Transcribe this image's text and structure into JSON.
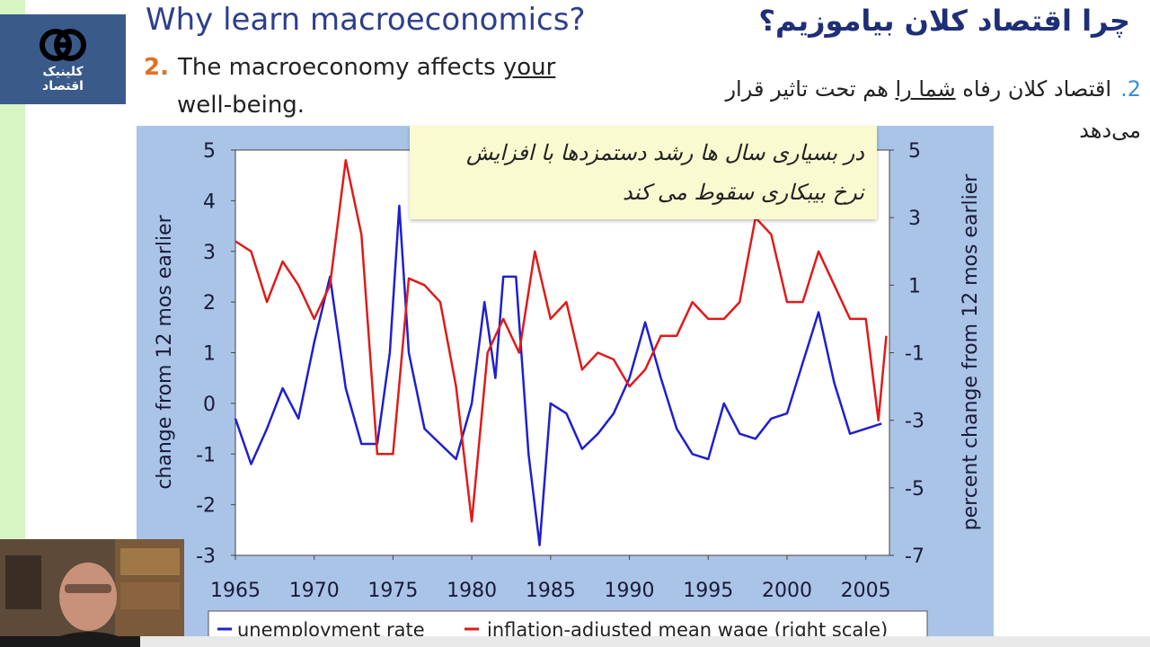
{
  "logo": {
    "line1": "کلینیک",
    "line2": "اقتصاد",
    "icon": "ec-logo-icon"
  },
  "slide": {
    "title_en": "Why learn macroeconomics?",
    "title_fa": "چرا اقتصاد کلان بیاموزیم؟",
    "point_en": {
      "number": "2.",
      "pre": "The macroeconomy affects ",
      "underlined": "your",
      "post": "well-being."
    },
    "point_fa": {
      "number": "2.",
      "pre": "اقتصاد کلان رفاه ",
      "underlined": "شما را",
      "post": " هم تحت تاثیر قرار می‌دهد"
    },
    "callout": {
      "line1": "در بسیاری سال ها رشد دستمزدها با افزایش",
      "line2": "نرخ بیبکاری سقوط می کند"
    }
  },
  "colors": {
    "unemployment": "#1f1fd0",
    "wage": "#e01a1a",
    "chart_frame": "#a9c4e6",
    "title": "#2d3f8c"
  },
  "chart_data": {
    "type": "line",
    "title": "",
    "xlabel": "",
    "ylabel_left": "change from 12 mos earlier",
    "ylabel_right": "percent change from 12 mos earlier",
    "xlim": [
      1965,
      2006.5
    ],
    "ylim_left": [
      -3,
      5
    ],
    "ylim_right": [
      -7,
      5
    ],
    "x_ticks": [
      "1965",
      "1970",
      "1975",
      "1980",
      "1985",
      "1990",
      "1995",
      "2000",
      "2005"
    ],
    "y_ticks_left": [
      "5",
      "4",
      "3",
      "2",
      "1",
      "0",
      "-1",
      "-2",
      "-3"
    ],
    "y_ticks_right": [
      "5",
      "3",
      "1",
      "-1",
      "-3",
      "-5",
      "-7"
    ],
    "legend_position": "bottom",
    "series": [
      {
        "name": "unemployment rate",
        "axis": "left",
        "x": [
          1965,
          1966,
          1967,
          1968,
          1969,
          1970,
          1971,
          1972,
          1973,
          1974,
          1974.8,
          1975.4,
          1976,
          1977,
          1978,
          1979,
          1980,
          1980.8,
          1981.5,
          1982,
          1982.8,
          1983.6,
          1984.3,
          1985,
          1986,
          1987,
          1988,
          1989,
          1990,
          1991,
          1992,
          1993,
          1994,
          1995,
          1996,
          1997,
          1998,
          1999,
          2000,
          2001,
          2002,
          2003,
          2004,
          2005,
          2006
        ],
        "y": [
          -0.3,
          -1.2,
          -0.5,
          0.3,
          -0.3,
          1.2,
          2.5,
          0.3,
          -0.8,
          -0.8,
          1.0,
          3.9,
          1.0,
          -0.5,
          -0.8,
          -1.1,
          0.0,
          2.0,
          0.5,
          2.5,
          2.5,
          -1.0,
          -2.8,
          0.0,
          -0.2,
          -0.9,
          -0.6,
          -0.2,
          0.5,
          1.6,
          0.5,
          -0.5,
          -1.0,
          -1.1,
          0.0,
          -0.6,
          -0.7,
          -0.3,
          -0.2,
          0.8,
          1.8,
          0.4,
          -0.6,
          -0.5,
          -0.4
        ]
      },
      {
        "name": "inflation-adjusted mean wage (right scale)",
        "axis": "right",
        "x": [
          1965,
          1966,
          1967,
          1968,
          1969,
          1970,
          1971,
          1972,
          1973,
          1974,
          1975,
          1976,
          1977,
          1978,
          1979,
          1980,
          1981,
          1982,
          1983,
          1984,
          1985,
          1986,
          1987,
          1988,
          1989,
          1990,
          1991,
          1992,
          1993,
          1994,
          1995,
          1996,
          1997,
          1998,
          1999,
          2000,
          2001,
          2002,
          2003,
          2004,
          2005,
          2005.8,
          2006.3
        ],
        "y": [
          2.3,
          2.0,
          0.5,
          1.7,
          1.0,
          0.0,
          1.0,
          4.7,
          2.5,
          -4.0,
          -4.0,
          1.2,
          1.0,
          0.5,
          -2.0,
          -6.0,
          -1.0,
          0.0,
          -1.0,
          2.0,
          0.0,
          0.5,
          -1.5,
          -1.0,
          -1.2,
          -2.0,
          -1.5,
          -0.5,
          -0.5,
          0.5,
          0.0,
          0.0,
          0.5,
          3.0,
          2.5,
          0.5,
          0.5,
          2.0,
          1.0,
          0.0,
          0.0,
          -3.0,
          -0.5
        ]
      }
    ]
  }
}
